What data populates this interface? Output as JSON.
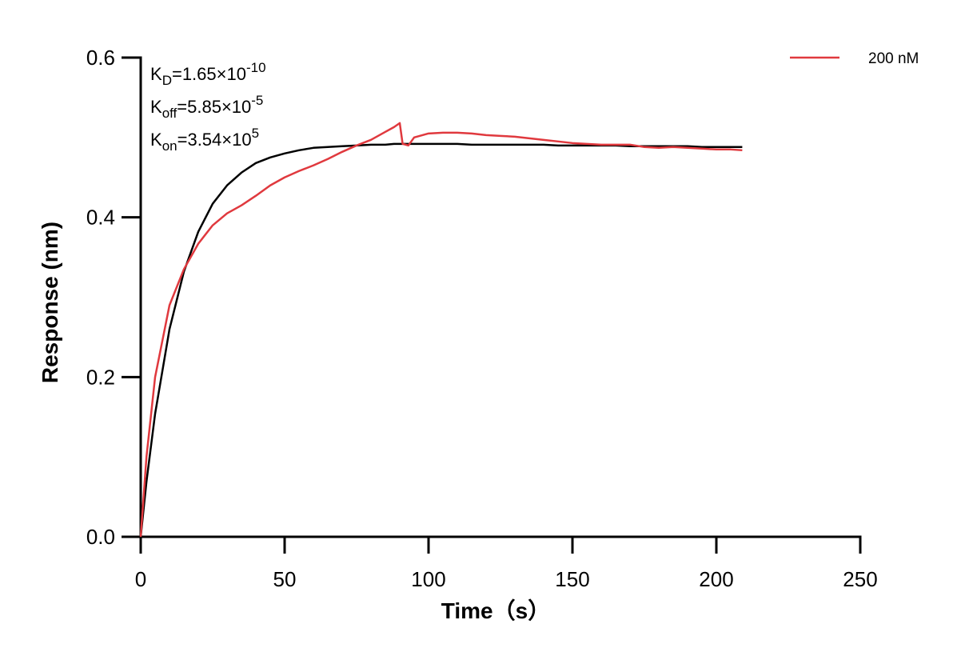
{
  "chart_data": {
    "type": "line",
    "x_label": "Time（s）",
    "y_label": "Response (nm)",
    "annotations": [
      {
        "base": "K",
        "sub": "D",
        "text": "=1.65×10",
        "sup": "-10"
      },
      {
        "base": "K",
        "sub": "off",
        "text": "=5.85×10",
        "sup": "-5"
      },
      {
        "base": "K",
        "sub": "on",
        "text": "=3.54×10",
        "sup": "5"
      }
    ],
    "x": [
      0,
      2,
      5,
      10,
      15,
      20,
      25,
      30,
      35,
      40,
      45,
      50,
      55,
      60,
      65,
      70,
      75,
      80,
      85,
      88,
      90,
      91,
      93,
      95,
      100,
      105,
      110,
      115,
      120,
      125,
      130,
      135,
      140,
      145,
      150,
      155,
      160,
      165,
      170,
      175,
      180,
      185,
      190,
      195,
      200,
      205,
      209
    ],
    "series": [
      {
        "name": "200 nM",
        "color": "#e0393e",
        "values": [
          0,
          0.1,
          0.2,
          0.29,
          0.335,
          0.367,
          0.39,
          0.405,
          0.415,
          0.427,
          0.44,
          0.45,
          0.458,
          0.465,
          0.473,
          0.482,
          0.49,
          0.497,
          0.507,
          0.513,
          0.518,
          0.492,
          0.49,
          0.5,
          0.505,
          0.506,
          0.506,
          0.505,
          0.503,
          0.502,
          0.501,
          0.499,
          0.497,
          0.495,
          0.493,
          0.492,
          0.491,
          0.491,
          0.491,
          0.488,
          0.487,
          0.488,
          0.487,
          0.486,
          0.485,
          0.485,
          0.484
        ]
      },
      {
        "color": "#000000",
        "values": [
          0,
          0.069,
          0.154,
          0.26,
          0.332,
          0.382,
          0.417,
          0.44,
          0.456,
          0.468,
          0.475,
          0.48,
          0.484,
          0.487,
          0.488,
          0.489,
          0.49,
          0.491,
          0.491,
          0.492,
          0.492,
          0.492,
          0.492,
          0.492,
          0.492,
          0.492,
          0.492,
          0.491,
          0.491,
          0.491,
          0.491,
          0.491,
          0.491,
          0.49,
          0.49,
          0.49,
          0.49,
          0.49,
          0.489,
          0.489,
          0.489,
          0.489,
          0.489,
          0.488,
          0.488,
          0.488,
          0.488
        ]
      }
    ],
    "xlim": [
      0,
      250
    ],
    "xticks": [
      0,
      50,
      100,
      150,
      200,
      250
    ],
    "ylim": [
      0,
      0.6
    ],
    "yticks": [
      {
        "value": 0,
        "label": "0.0"
      },
      0.2,
      0.4,
      0.6
    ],
    "legend": "top-right"
  }
}
